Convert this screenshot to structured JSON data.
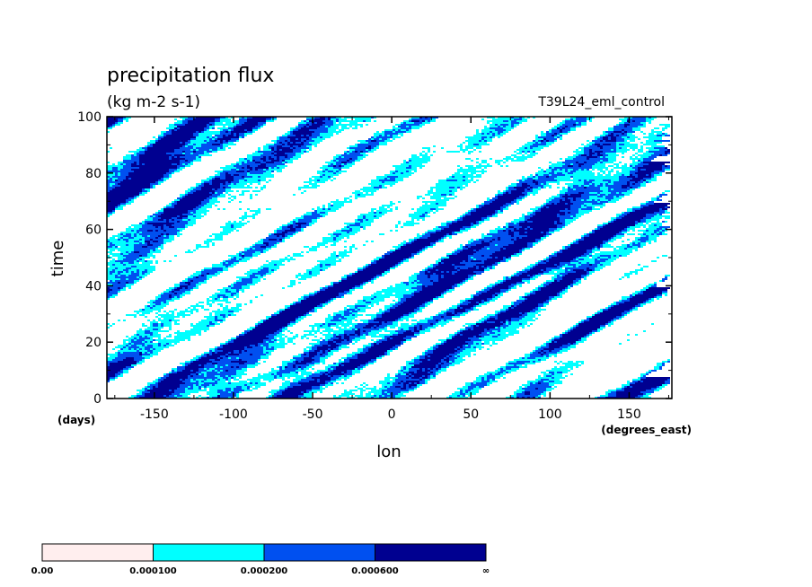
{
  "chart_data": {
    "type": "heatmap",
    "title": "precipitation flux",
    "units": "(kg m-2 s-1)",
    "experiment": "T39L24_eml_control",
    "xlabel": "lon",
    "ylabel": "time",
    "x_unit": "(degrees_east)",
    "y_unit": "(days)",
    "xlim": [
      -180,
      177
    ],
    "ylim": [
      0,
      100
    ],
    "x_ticks": [
      -150,
      -100,
      -50,
      0,
      50,
      100,
      150
    ],
    "y_ticks": [
      0,
      20,
      40,
      60,
      80,
      100
    ],
    "colorbar": {
      "bins": [
        {
          "color": "#ffeeee",
          "from": "0.00",
          "to": "0.000100"
        },
        {
          "color": "#00ffff",
          "from": "0.000100",
          "to": "0.000200"
        },
        {
          "color": "#0050f0",
          "from": "0.000200",
          "to": "0.000600"
        },
        {
          "color": "#000090",
          "from": "0.000600",
          "to": "∞"
        }
      ],
      "labels": [
        "0.00",
        "0.000100",
        "0.000200",
        "0.000600",
        "∞"
      ]
    },
    "plot_colors": [
      "#ffffff",
      "#00ffff",
      "#0050f0",
      "#000090"
    ]
  }
}
